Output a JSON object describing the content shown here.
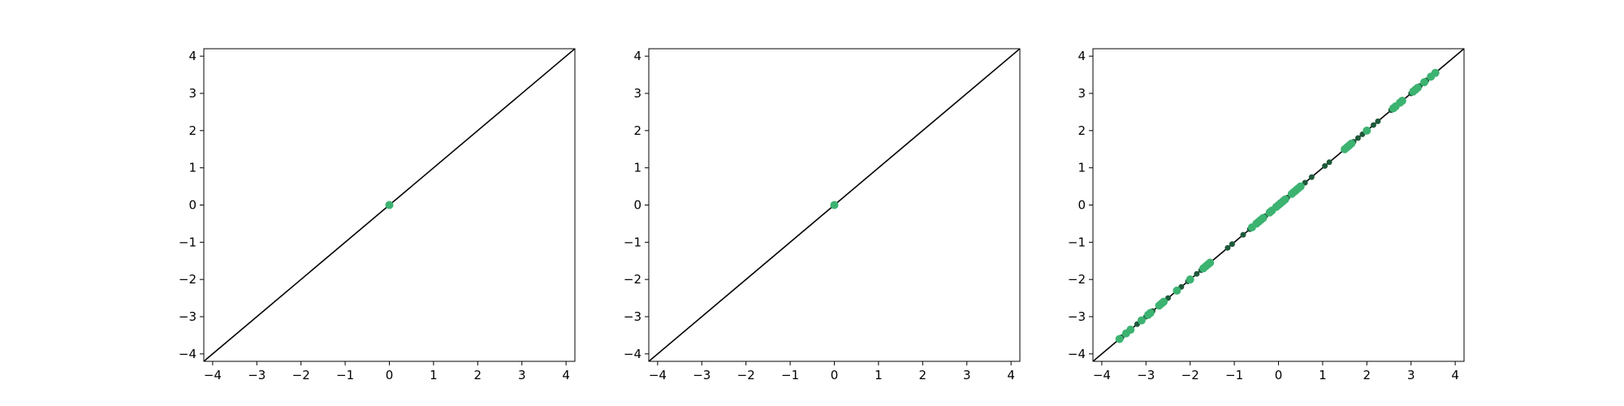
{
  "chart_data": [
    {
      "type": "scatter",
      "title": "",
      "xlabel": "",
      "ylabel": "",
      "xlim": [
        -4.2,
        4.2
      ],
      "ylim": [
        -4.2,
        4.2
      ],
      "xticks": [
        "−4",
        "−3",
        "−2",
        "−1",
        "0",
        "1",
        "2",
        "3",
        "4"
      ],
      "yticks": [
        "4",
        "3",
        "2",
        "1",
        "0",
        "−1",
        "−2",
        "−3",
        "−4"
      ],
      "grid": false,
      "reference_line": {
        "from": [
          -4.2,
          -4.2
        ],
        "to": [
          4.2,
          4.2
        ],
        "color": "#000000"
      },
      "series": [
        {
          "color": "#3cb371",
          "points": [
            [
              0,
              0
            ]
          ]
        }
      ]
    },
    {
      "type": "scatter",
      "title": "",
      "xlabel": "",
      "ylabel": "",
      "xlim": [
        -4.2,
        4.2
      ],
      "ylim": [
        -4.2,
        4.2
      ],
      "xticks": [
        "−4",
        "−3",
        "−2",
        "−1",
        "0",
        "1",
        "2",
        "3",
        "4"
      ],
      "yticks": [
        "4",
        "3",
        "2",
        "1",
        "0",
        "−1",
        "−2",
        "−3",
        "−4"
      ],
      "grid": false,
      "reference_line": {
        "from": [
          -4.2,
          -4.2
        ],
        "to": [
          4.2,
          4.2
        ],
        "color": "#000000"
      },
      "series": [
        {
          "color": "#3cb371",
          "points": [
            [
              0,
              0
            ]
          ]
        }
      ]
    },
    {
      "type": "scatter",
      "title": "",
      "xlabel": "",
      "ylabel": "",
      "xlim": [
        -4.2,
        4.2
      ],
      "ylim": [
        -4.2,
        4.2
      ],
      "xticks": [
        "−4",
        "−3",
        "−2",
        "−1",
        "0",
        "1",
        "2",
        "3",
        "4"
      ],
      "yticks": [
        "4",
        "3",
        "2",
        "1",
        "0",
        "−1",
        "−2",
        "−3",
        "−4"
      ],
      "grid": false,
      "reference_line": {
        "from": [
          -4.2,
          -4.2
        ],
        "to": [
          4.2,
          4.2
        ],
        "color": "#000000"
      },
      "series": [
        {
          "color": "#1e5a3a",
          "points": [
            [
              -3.55,
              -3.55
            ],
            [
              -3.4,
              -3.4
            ],
            [
              -3.2,
              -3.2
            ],
            [
              -3.0,
              -3.0
            ],
            [
              -2.85,
              -2.85
            ],
            [
              -2.5,
              -2.5
            ],
            [
              -2.2,
              -2.2
            ],
            [
              -2.05,
              -2.05
            ],
            [
              -1.85,
              -1.85
            ],
            [
              -1.75,
              -1.75
            ],
            [
              -1.15,
              -1.15
            ],
            [
              -1.05,
              -1.05
            ],
            [
              -0.8,
              -0.8
            ],
            [
              -0.65,
              -0.65
            ],
            [
              -0.3,
              -0.3
            ],
            [
              -0.1,
              -0.1
            ],
            [
              0.2,
              0.2
            ],
            [
              0.6,
              0.6
            ],
            [
              0.75,
              0.75
            ],
            [
              1.05,
              1.05
            ],
            [
              1.15,
              1.15
            ],
            [
              1.7,
              1.7
            ],
            [
              1.8,
              1.8
            ],
            [
              1.9,
              1.9
            ],
            [
              2.15,
              2.15
            ],
            [
              2.25,
              2.25
            ],
            [
              2.55,
              2.55
            ],
            [
              2.7,
              2.7
            ],
            [
              3.0,
              3.0
            ],
            [
              3.2,
              3.2
            ],
            [
              3.35,
              3.35
            ],
            [
              3.5,
              3.5
            ]
          ]
        },
        {
          "color": "#3cb371",
          "points": [
            [
              -3.6,
              -3.6
            ],
            [
              -3.45,
              -3.45
            ],
            [
              -3.35,
              -3.35
            ],
            [
              -3.1,
              -3.1
            ],
            [
              -2.95,
              -2.95
            ],
            [
              -2.9,
              -2.9
            ],
            [
              -2.7,
              -2.7
            ],
            [
              -2.65,
              -2.65
            ],
            [
              -2.6,
              -2.6
            ],
            [
              -2.3,
              -2.3
            ],
            [
              -2.0,
              -2.0
            ],
            [
              -1.7,
              -1.7
            ],
            [
              -1.65,
              -1.65
            ],
            [
              -1.6,
              -1.6
            ],
            [
              -1.55,
              -1.55
            ],
            [
              -0.6,
              -0.6
            ],
            [
              -0.5,
              -0.5
            ],
            [
              -0.45,
              -0.45
            ],
            [
              -0.4,
              -0.4
            ],
            [
              -0.35,
              -0.35
            ],
            [
              -0.2,
              -0.2
            ],
            [
              -0.15,
              -0.15
            ],
            [
              -0.05,
              -0.05
            ],
            [
              0.0,
              0.0
            ],
            [
              0.05,
              0.05
            ],
            [
              0.1,
              0.1
            ],
            [
              0.15,
              0.15
            ],
            [
              0.3,
              0.3
            ],
            [
              0.35,
              0.35
            ],
            [
              0.4,
              0.4
            ],
            [
              0.45,
              0.45
            ],
            [
              0.5,
              0.5
            ],
            [
              1.5,
              1.5
            ],
            [
              1.55,
              1.55
            ],
            [
              1.6,
              1.6
            ],
            [
              1.65,
              1.65
            ],
            [
              2.0,
              2.0
            ],
            [
              2.6,
              2.6
            ],
            [
              2.65,
              2.65
            ],
            [
              2.75,
              2.75
            ],
            [
              2.8,
              2.8
            ],
            [
              3.05,
              3.05
            ],
            [
              3.1,
              3.1
            ],
            [
              3.15,
              3.15
            ],
            [
              3.3,
              3.3
            ],
            [
              3.45,
              3.45
            ],
            [
              3.55,
              3.55
            ]
          ]
        }
      ]
    }
  ]
}
